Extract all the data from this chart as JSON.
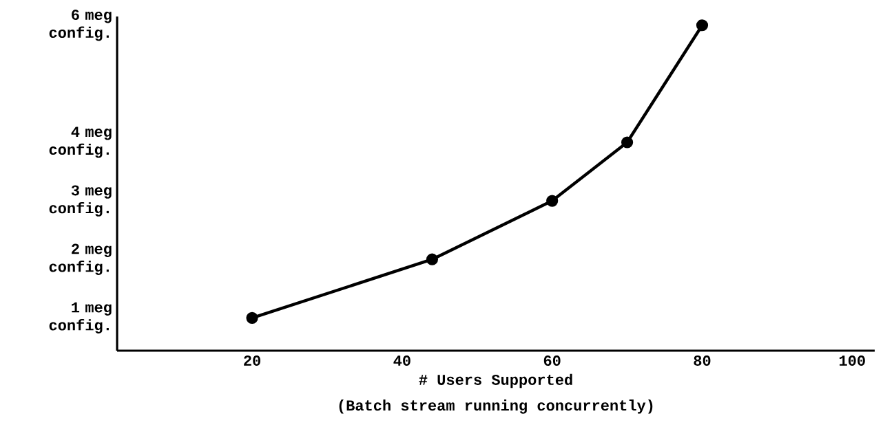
{
  "chart_data": {
    "type": "line",
    "xlabel": "# Users Supported",
    "annotations": [
      "(Batch stream running concurrently)"
    ],
    "x": [
      20,
      44,
      60,
      70,
      80
    ],
    "series": [
      {
        "color": "#000000",
        "values": [
          1,
          2,
          3,
          4,
          6
        ]
      }
    ],
    "xlim": [
      2,
      103
    ],
    "xticks": [
      20,
      40,
      60,
      80,
      100
    ],
    "ylim": [
      0.44,
      6.15
    ],
    "yticks": [
      {
        "value": 1,
        "label": "1 meg config."
      },
      {
        "value": 2,
        "label": "2 meg config."
      },
      {
        "value": 3,
        "label": "3 meg config."
      },
      {
        "value": 4,
        "label": "4 meg config."
      },
      {
        "value": 6,
        "label": "6 meg config."
      }
    ],
    "marker": "circle",
    "line_style": "solid",
    "grid": false
  }
}
